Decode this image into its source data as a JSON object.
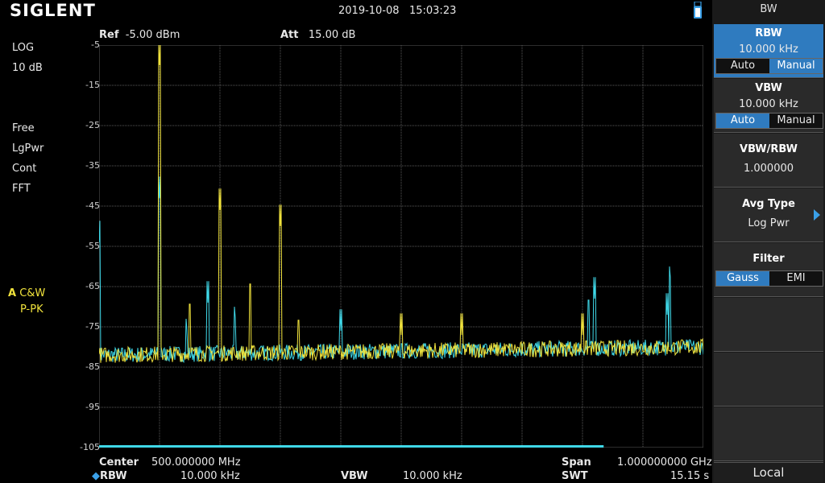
{
  "header": {
    "logo": "SIGLENT",
    "date": "2019-10-08",
    "time": "15:03:23"
  },
  "ref": {
    "label": "Ref",
    "value": "-5.00 dBm"
  },
  "att": {
    "label": "Att",
    "value": "15.00 dB"
  },
  "left_info": {
    "scale": "LOG",
    "scale_div": "10 dB",
    "trigger": "Free",
    "avg": "LgPwr",
    "sweep": "Cont",
    "mode": "FFT",
    "trace_letter": "A",
    "trace_mode": "C&W",
    "detector": "P-PK"
  },
  "y_ticks": [
    "-5",
    "-15",
    "-25",
    "-35",
    "-45",
    "-55",
    "-65",
    "-75",
    "-85",
    "-95",
    "-105"
  ],
  "bottom": {
    "center_label": "Center",
    "center_value": "500.000000 MHz",
    "rbw_label": "RBW",
    "rbw_value": "10.000 kHz",
    "vbw_label": "VBW",
    "vbw_value": "10.000 kHz",
    "span_label": "Span",
    "span_value": "1.000000000 GHz",
    "swt_label": "SWT",
    "swt_value": "15.15 s"
  },
  "side": {
    "title": "BW",
    "rbw": {
      "label": "RBW",
      "value": "10.000 kHz",
      "opt_a": "Auto",
      "opt_b": "Manual"
    },
    "vbw": {
      "label": "VBW",
      "value": "10.000 kHz",
      "opt_a": "Auto",
      "opt_b": "Manual"
    },
    "ratio": {
      "label": "VBW/RBW",
      "value": "1.000000"
    },
    "avg_type": {
      "label": "Avg Type",
      "value": "Log Pwr"
    },
    "filter": {
      "label": "Filter",
      "opt_a": "Gauss",
      "opt_b": "EMI"
    },
    "local": "Local"
  },
  "colors": {
    "trace_yellow": "#f0e23c",
    "trace_cyan": "#3fd8e8",
    "accent": "#2f7bbf",
    "grid": "#5a5a5a"
  },
  "chart_data": {
    "type": "line",
    "xlim": [
      0,
      1000
    ],
    "ylim": [
      -105,
      -5
    ],
    "x_unit": "MHz",
    "y_unit": "dBm",
    "grid": true,
    "noise_floor": -82,
    "series": [
      {
        "color": "yellow",
        "peaks": [
          [
            100,
            -10
          ],
          [
            150,
            -72
          ],
          [
            200,
            -46
          ],
          [
            250,
            -67
          ],
          [
            300,
            -50
          ],
          [
            330,
            -76
          ],
          [
            500,
            -77
          ],
          [
            600,
            -77
          ],
          [
            800,
            -77
          ]
        ]
      },
      {
        "color": "cyan",
        "peaks": [
          [
            0,
            -54
          ],
          [
            100,
            -43
          ],
          [
            145,
            -77
          ],
          [
            180,
            -69
          ],
          [
            225,
            -74
          ],
          [
            400,
            -76
          ],
          [
            810,
            -71
          ],
          [
            820,
            -68
          ],
          [
            940,
            -72
          ],
          [
            945,
            -64
          ]
        ]
      }
    ]
  }
}
